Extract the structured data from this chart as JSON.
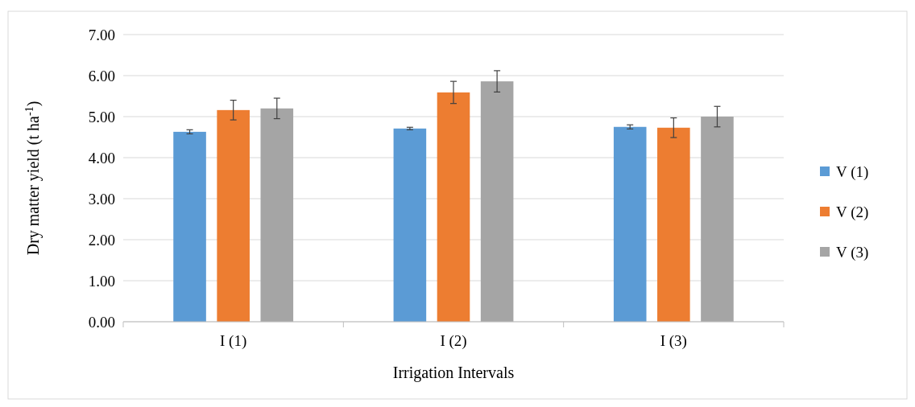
{
  "chart_data": {
    "type": "bar",
    "xlabel": "Irrigation Intervals",
    "ylabel": "Dry matter yield (t ha$^{-1}$)",
    "categories": [
      "I (1)",
      "I (2)",
      "I (3)"
    ],
    "series": [
      {
        "name": "V (1)",
        "color": "#5b9bd5",
        "values": [
          4.63,
          4.71,
          4.75
        ],
        "errors": [
          0.05,
          0.03,
          0.05
        ]
      },
      {
        "name": "V (2)",
        "color": "#ed7d31",
        "values": [
          5.16,
          5.59,
          4.73
        ],
        "errors": [
          0.24,
          0.27,
          0.24
        ]
      },
      {
        "name": "V (3)",
        "color": "#a5a5a5",
        "values": [
          5.2,
          5.86,
          5.0
        ],
        "errors": [
          0.25,
          0.26,
          0.25
        ]
      }
    ],
    "ylim": [
      0,
      7
    ],
    "yticks": [
      {
        "value": 0,
        "label": "0.00"
      },
      {
        "value": 1,
        "label": "1.00"
      },
      {
        "value": 2,
        "label": "2.00"
      },
      {
        "value": 3,
        "label": "3.00"
      },
      {
        "value": 4,
        "label": "4.00"
      },
      {
        "value": 5,
        "label": "5.00"
      },
      {
        "value": 6,
        "label": "6.00"
      },
      {
        "value": 7,
        "label": "7.00"
      }
    ],
    "grid": "y",
    "legend": "right"
  }
}
